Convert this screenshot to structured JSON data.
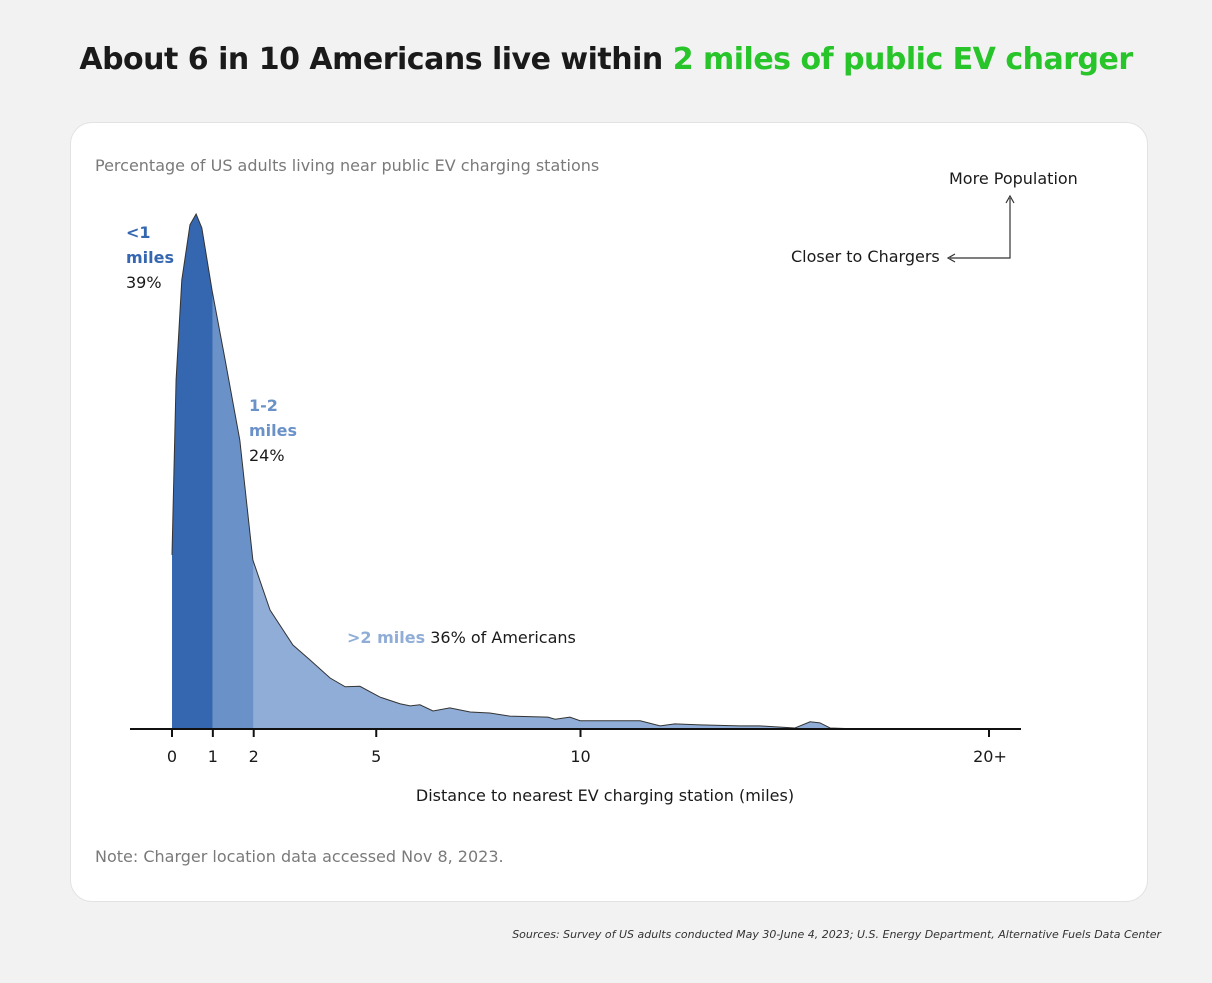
{
  "title": {
    "prefix": "About 6 in 10 Americans live within ",
    "highlight": "2 miles of public EV charger",
    "highlight_color": "#27c42a"
  },
  "note": "Note: Charger location data accessed Nov 8, 2023.",
  "sources": "Sources: Survey of US adults conducted May 30-June 4, 2023; U.S. Energy Department, Alternative Fuels Data Center",
  "chart_data": {
    "type": "area",
    "title": "Percentage of US adults living near public EV charging stations",
    "xlabel": "Distance to nearest EV charging station (miles)",
    "ylabel": "",
    "xlim": [
      0,
      20
    ],
    "x_ticks": [
      {
        "value": 0,
        "label": "0"
      },
      {
        "value": 1,
        "label": "1"
      },
      {
        "value": 2,
        "label": "2"
      },
      {
        "value": 5,
        "label": "5"
      },
      {
        "value": 10,
        "label": "10"
      },
      {
        "value": 20,
        "label": "20+"
      }
    ],
    "grid": false,
    "density_relative_to_peak": {
      "x": [
        0,
        0.1,
        0.24,
        0.44,
        0.59,
        0.73,
        0.98,
        1.3,
        1.66,
        1.98,
        2.4,
        2.96,
        3.38,
        3.87,
        4.24,
        4.6,
        5.09,
        5.58,
        5.83,
        6.07,
        6.39,
        6.8,
        7.3,
        7.78,
        8.27,
        9.2,
        9.38,
        9.74,
        9.99,
        11.46,
        11.95,
        12.31,
        12.93,
        13.9,
        14.39,
        15.25,
        15.62,
        15.86,
        16.11,
        16.84,
        20
      ],
      "y": [
        33.8,
        67.8,
        87.2,
        97.9,
        100,
        97.3,
        85.2,
        71.7,
        56.1,
        32.8,
        23.1,
        16.3,
        13.4,
        9.9,
        8.2,
        8.3,
        6.2,
        4.9,
        4.5,
        4.7,
        3.5,
        4.1,
        3.3,
        3.1,
        2.5,
        2.3,
        1.9,
        2.3,
        1.6,
        1.6,
        0.6,
        1.0,
        0.8,
        0.6,
        0.6,
        0.2,
        1.4,
        1.2,
        0.2,
        0,
        0
      ]
    },
    "segments": [
      {
        "range": [
          0,
          1
        ],
        "label_line1": "<1",
        "label_line2": "miles",
        "value": "39%",
        "color": "#3567b0"
      },
      {
        "range": [
          1,
          2
        ],
        "label_line1": "1-2",
        "label_line2": "miles",
        "value": "24%",
        "color": "#6a91c8"
      },
      {
        "range": [
          2,
          20
        ],
        "label": ">2 miles",
        "value": "36% of Americans",
        "color": "#8fadd6"
      }
    ],
    "annotations": {
      "up": "More Population",
      "left": "Closer to Chargers"
    }
  }
}
